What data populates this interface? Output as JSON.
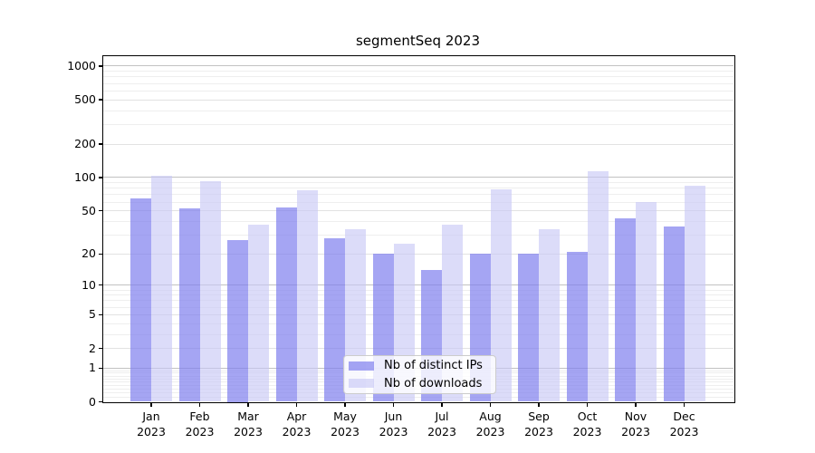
{
  "title": "segmentSeq 2023",
  "chart_data": {
    "type": "bar",
    "title": "segmentSeq 2023",
    "y_scale": "log1p",
    "ylim": [
      0,
      1250
    ],
    "yticks": [
      1000,
      500,
      200,
      100,
      50,
      20,
      10,
      5,
      2,
      1,
      0
    ],
    "grid": true,
    "legend_position": "lower center",
    "categories": [
      "Jan",
      "Feb",
      "Mar",
      "Apr",
      "May",
      "Jun",
      "Jul",
      "Aug",
      "Sep",
      "Oct",
      "Nov",
      "Dec"
    ],
    "category_year": "2023",
    "series": [
      {
        "name": "Nb of distinct IPs",
        "color": "rgba(127,127,238,0.70)",
        "values": [
          65,
          53,
          27,
          54,
          28,
          20,
          14,
          20,
          20,
          21,
          43,
          36
        ]
      },
      {
        "name": "Nb of downloads",
        "color": "rgba(199,199,245,0.62)",
        "values": [
          103,
          93,
          37,
          77,
          34,
          25,
          37,
          78,
          34,
          115,
          60,
          85
        ]
      }
    ],
    "grid_colors": {
      "major": "#c2c2c2",
      "minor_labeled": "#e2e2e2",
      "minor": "#eeeeee"
    }
  }
}
